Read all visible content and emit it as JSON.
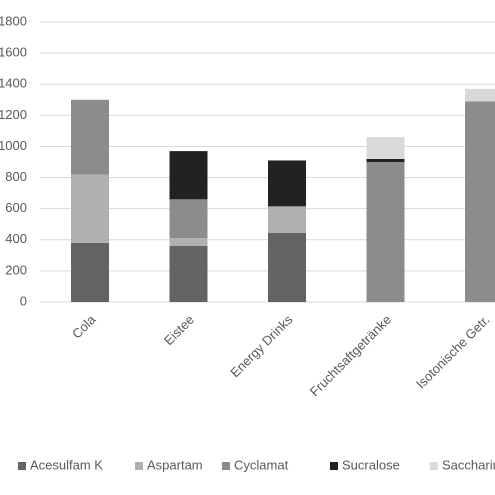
{
  "chart_data": {
    "type": "stacked_bar",
    "categories": [
      "Cola",
      "Eistee",
      "Energy Drinks",
      "Fruchtsaftgetränke",
      "Isotonische Getr."
    ],
    "series": [
      {
        "name": "Acesulfam K",
        "color": "#636363",
        "values": [
          380,
          360,
          445,
          0,
          0
        ]
      },
      {
        "name": "Aspartam",
        "color": "#b0b0b0",
        "values": [
          440,
          50,
          170,
          0,
          0
        ]
      },
      {
        "name": "Cyclamat",
        "color": "#8c8c8c",
        "values": [
          480,
          250,
          0,
          900,
          1290
        ]
      },
      {
        "name": "Sucralose",
        "color": "#222222",
        "values": [
          0,
          310,
          295,
          20,
          0
        ]
      },
      {
        "name": "Saccharin",
        "color": "#d9d9d9",
        "values": [
          0,
          0,
          0,
          140,
          80
        ]
      }
    ],
    "ylim": [
      0,
      1800
    ],
    "yticks": [
      0,
      200,
      400,
      600,
      800,
      1000,
      1200,
      1400,
      1600,
      1800
    ],
    "grid": true,
    "legend": "bottom"
  }
}
